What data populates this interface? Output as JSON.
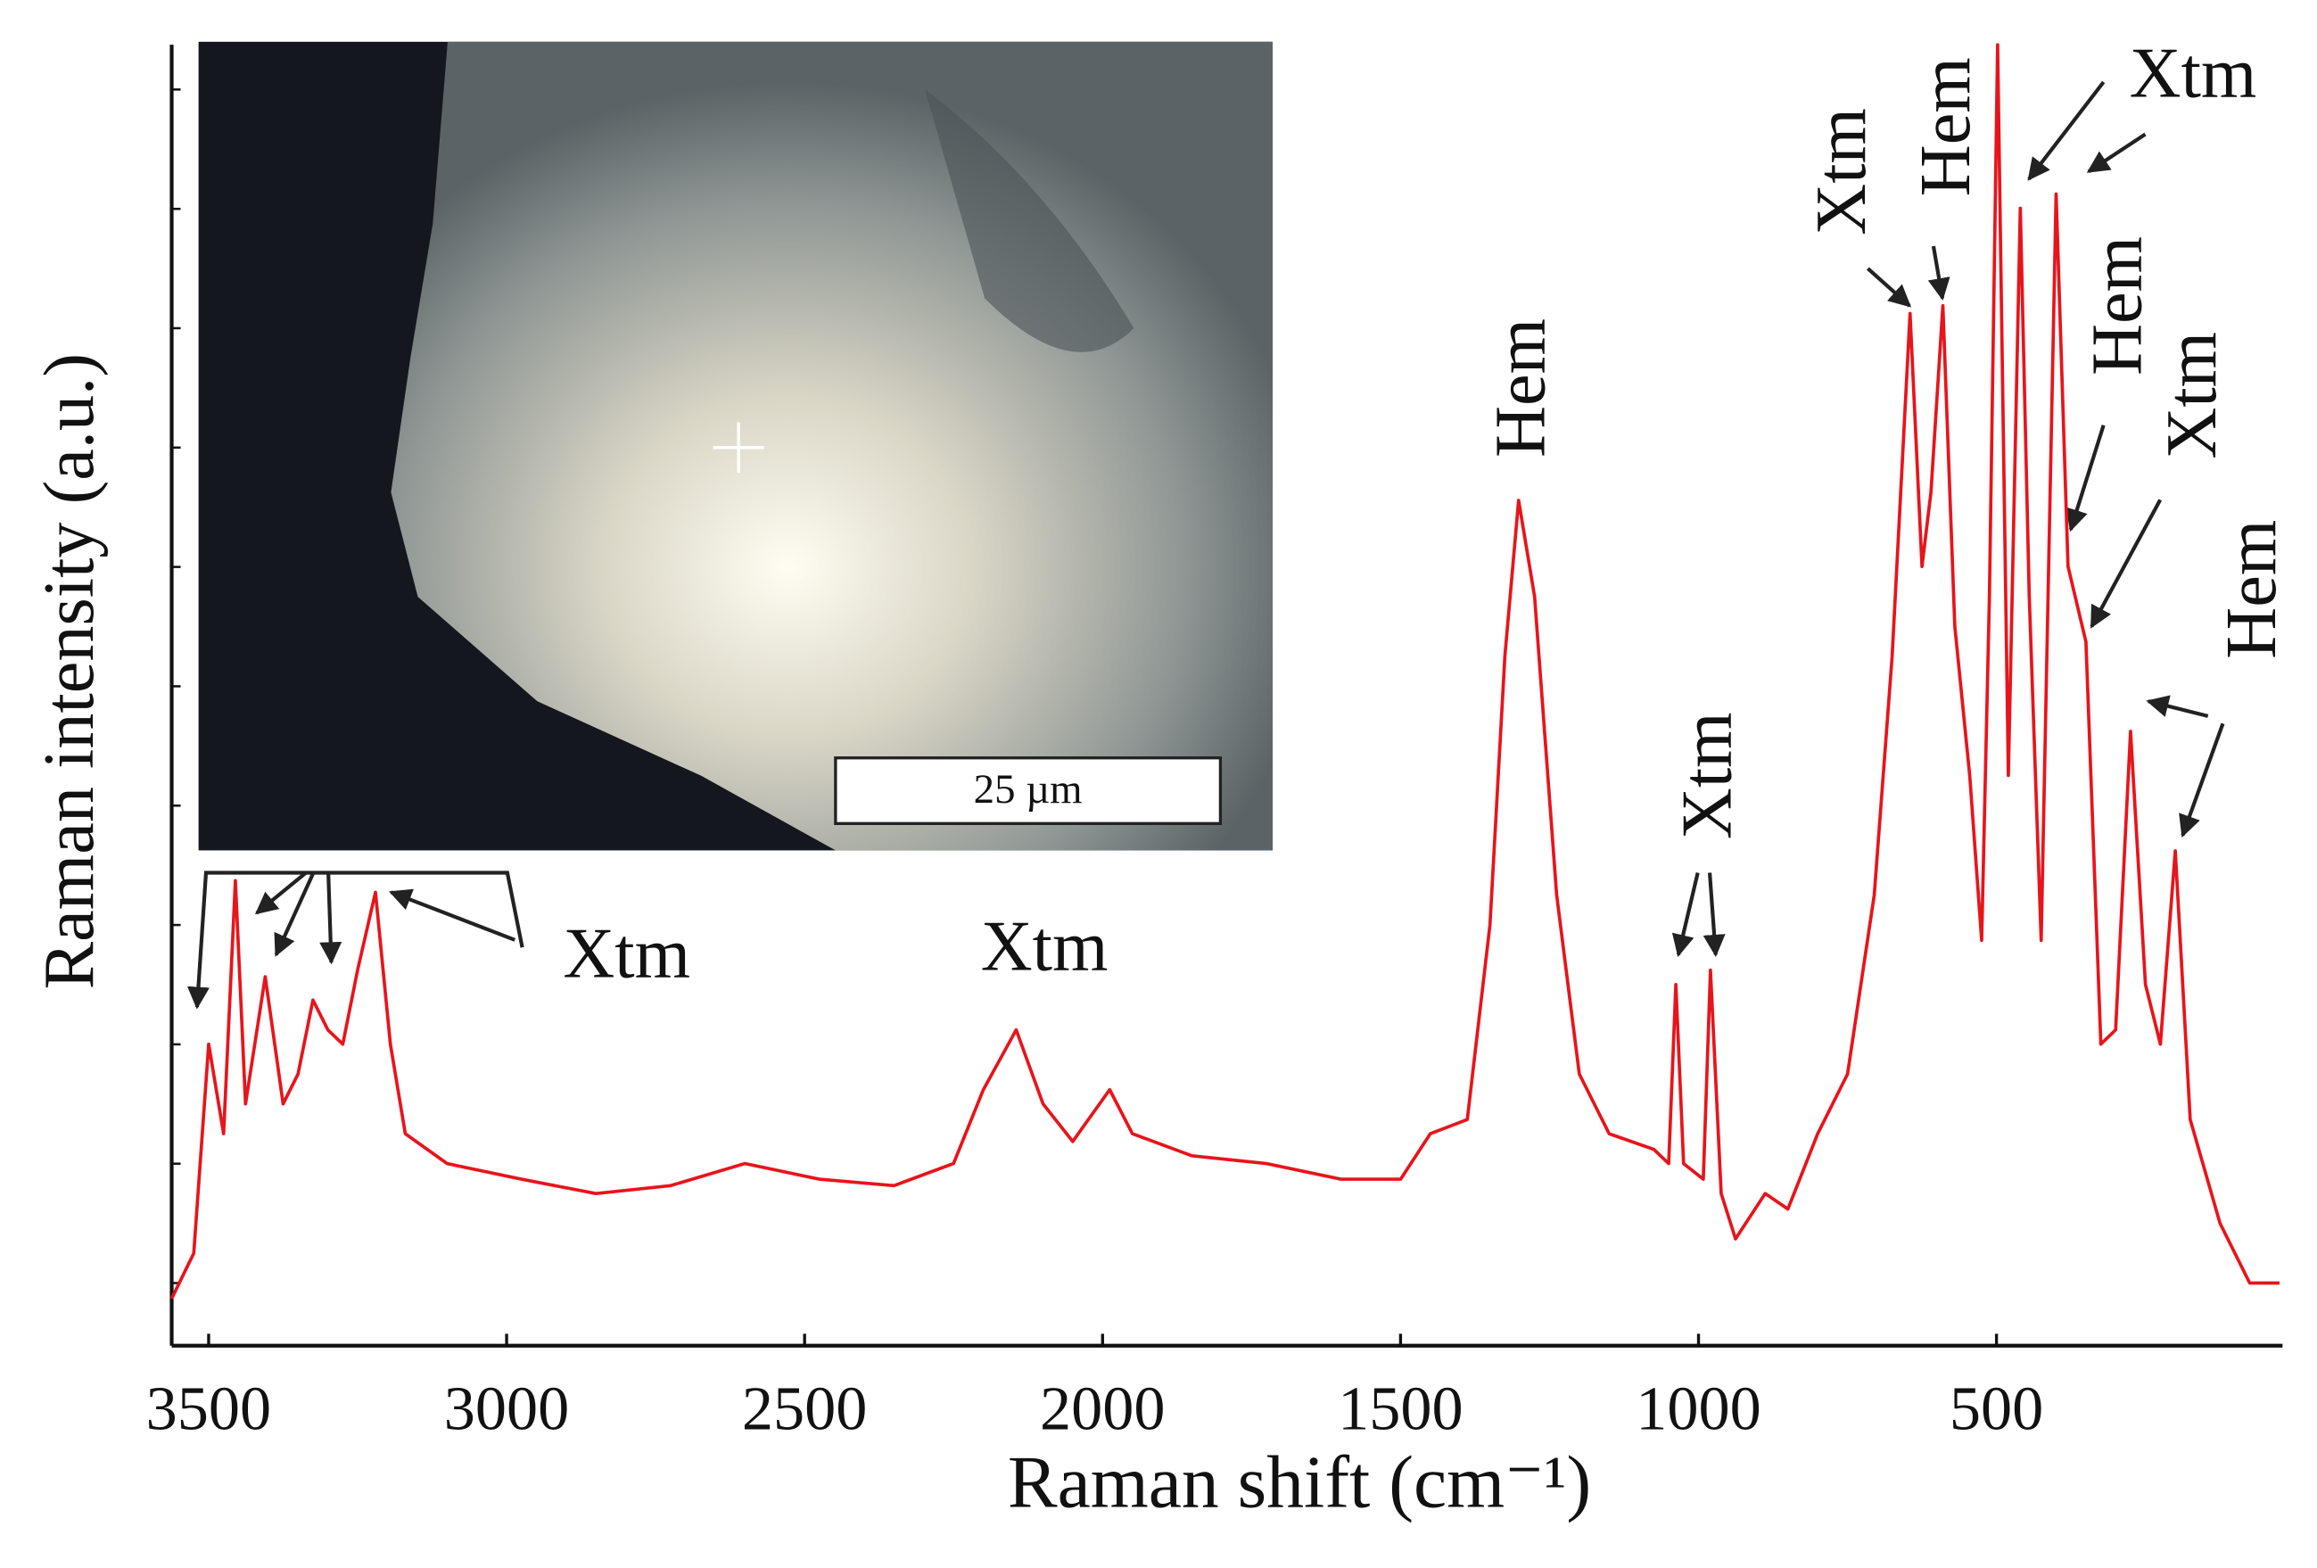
{
  "chart_data": {
    "type": "line",
    "xlabel": "Raman shift (cm⁻¹)",
    "ylabel": "Raman intensity (a.u.)",
    "inset_label": "25 µm",
    "xlim": [
      3562,
      20
    ],
    "ylim": [
      0,
      100
    ],
    "xticks": [
      3500,
      3000,
      2500,
      2000,
      1500,
      1000,
      500
    ],
    "x": [
      3562,
      3525,
      3500,
      3475,
      3455,
      3438,
      3405,
      3375,
      3350,
      3325,
      3300,
      3275,
      3250,
      3220,
      3195,
      3170,
      3100,
      2975,
      2850,
      2725,
      2600,
      2475,
      2350,
      2250,
      2200,
      2145,
      2100,
      2050,
      1988,
      1950,
      1850,
      1725,
      1600,
      1500,
      1450,
      1388,
      1350,
      1325,
      1302,
      1275,
      1238,
      1200,
      1150,
      1075,
      1050,
      1038,
      1025,
      992,
      980,
      962,
      938,
      888,
      850,
      800,
      750,
      705,
      675,
      645,
      625,
      610,
      590,
      570,
      545,
      525,
      512,
      498,
      480,
      460,
      445,
      425,
      400,
      380,
      350,
      325,
      300,
      275,
      250,
      225,
      200,
      175,
      125,
      75,
      25
    ],
    "series": [
      {
        "color": "#e8141b",
        "values": [
          3.4,
          6.9,
          23,
          16.1,
          35.6,
          18.4,
          28.2,
          18.4,
          20.7,
          26.4,
          24.1,
          23,
          28.7,
          34.7,
          23,
          16.1,
          13.8,
          12.6,
          11.5,
          12.1,
          13.8,
          12.6,
          12.1,
          13.8,
          19.5,
          24.1,
          18.4,
          15.5,
          19.5,
          16.1,
          14.4,
          13.8,
          12.6,
          12.6,
          16.1,
          17.2,
          32.2,
          52.9,
          64.9,
          57.5,
          34.5,
          20.7,
          16.1,
          14.9,
          13.8,
          27.6,
          13.8,
          12.6,
          28.7,
          11.5,
          8,
          11.5,
          10.3,
          16.1,
          20.7,
          34.5,
          52.9,
          79.3,
          59.8,
          65.5,
          79.9,
          55.2,
          43.7,
          31,
          57.5,
          100,
          43.7,
          87.4,
          57.5,
          31,
          88.5,
          59.8,
          54,
          23,
          24.1,
          47.1,
          27.6,
          23,
          37.9,
          17.2,
          9.2,
          4.6,
          4.6
        ]
      }
    ],
    "annotations": [
      "Xtm",
      "Xtm",
      "Hem",
      "Xtm",
      "Xtm",
      "Hem",
      "Xtm",
      "Hem",
      "Xtm",
      "Hem"
    ]
  }
}
